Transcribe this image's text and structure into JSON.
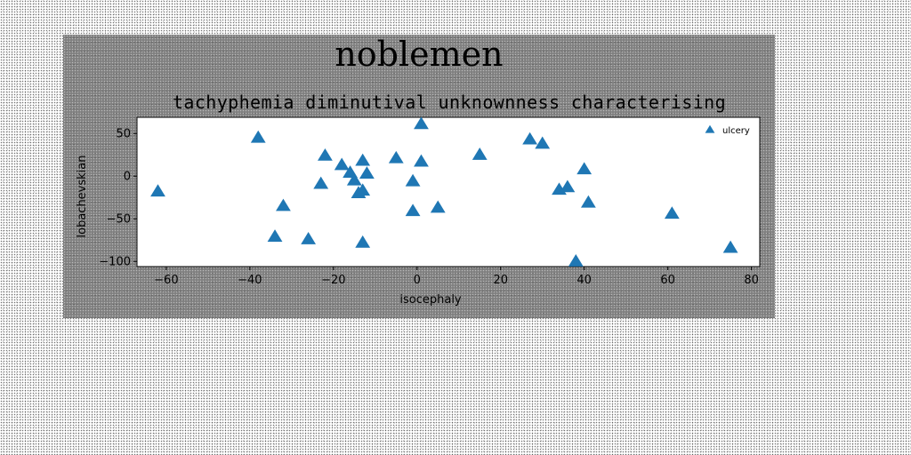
{
  "figure": {
    "suptitle": "noblemen",
    "background": "#808080"
  },
  "chart_data": {
    "type": "scatter",
    "title": "tachyphemia diminutival unknownness characterising",
    "xlabel": "isocephaly",
    "ylabel": "lobachevskian",
    "xlim": [
      -67,
      82
    ],
    "ylim": [
      -106,
      69
    ],
    "xticks": [
      -60,
      -40,
      -20,
      0,
      20,
      40,
      60,
      80
    ],
    "yticks": [
      50,
      0,
      -50,
      -100
    ],
    "grid": false,
    "legend_position": "top-right",
    "marker": "triangle",
    "color": "#1f77b4",
    "series": [
      {
        "name": "ulcery",
        "points": [
          [
            -62,
            -18
          ],
          [
            -38,
            45
          ],
          [
            -34,
            -71
          ],
          [
            -32,
            -35
          ],
          [
            -26,
            -74
          ],
          [
            -23,
            -9
          ],
          [
            -22,
            24
          ],
          [
            -18,
            13
          ],
          [
            -16,
            4
          ],
          [
            -15,
            -5
          ],
          [
            -14,
            -20
          ],
          [
            -13,
            18
          ],
          [
            -13,
            -17
          ],
          [
            -13,
            -78
          ],
          [
            -12,
            3
          ],
          [
            -5,
            21
          ],
          [
            -1,
            -6
          ],
          [
            -1,
            -41
          ],
          [
            1,
            61
          ],
          [
            1,
            17
          ],
          [
            5,
            -37
          ],
          [
            15,
            25
          ],
          [
            27,
            43
          ],
          [
            30,
            38
          ],
          [
            34,
            -16
          ],
          [
            36,
            -13
          ],
          [
            38,
            -100
          ],
          [
            40,
            8
          ],
          [
            41,
            -31
          ],
          [
            61,
            -44
          ],
          [
            75,
            -84
          ]
        ]
      }
    ]
  }
}
